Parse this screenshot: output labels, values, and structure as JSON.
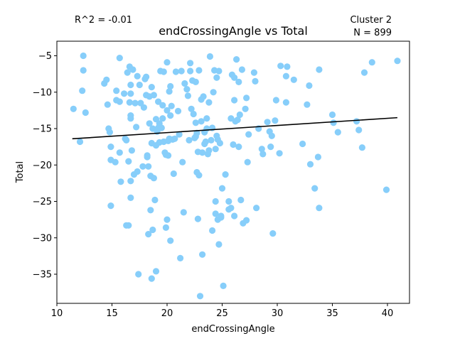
{
  "chart_data": {
    "type": "scatter",
    "title": "endCrossingAngle vs Total",
    "xlabel": "endCrossingAngle",
    "ylabel": "Total",
    "xlim": [
      10,
      42
    ],
    "ylim": [
      -39,
      -3
    ],
    "xticks": [
      10,
      15,
      20,
      25,
      30,
      35,
      40
    ],
    "yticks": [
      -35,
      -30,
      -25,
      -20,
      -15,
      -10,
      -5
    ],
    "grid": false,
    "annotations": {
      "r2": "R^2 = -0.01",
      "cluster": "Cluster 2",
      "n": "N = 899"
    },
    "marker_color": "#87cefa",
    "line_color": "#000000",
    "trendline": {
      "x": [
        11.4,
        40.9
      ],
      "y": [
        -16.4,
        -13.5
      ]
    },
    "points": [
      [
        11.5,
        -12.3
      ],
      [
        12.1,
        -16.8
      ],
      [
        12.3,
        -9.8
      ],
      [
        12.4,
        -5.0
      ],
      [
        12.4,
        -7.0
      ],
      [
        12.6,
        -12.8
      ],
      [
        14.3,
        -8.8
      ],
      [
        14.5,
        -8.3
      ],
      [
        14.6,
        -11.7
      ],
      [
        14.7,
        -15.0
      ],
      [
        14.8,
        -15.5
      ],
      [
        14.9,
        -19.3
      ],
      [
        14.9,
        -17.5
      ],
      [
        14.9,
        -25.6
      ],
      [
        15.3,
        -19.6
      ],
      [
        15.4,
        -9.8
      ],
      [
        15.4,
        -11.1
      ],
      [
        15.7,
        -5.3
      ],
      [
        15.7,
        -11.3
      ],
      [
        15.7,
        -18.3
      ],
      [
        15.8,
        -22.3
      ],
      [
        16.1,
        -10.2
      ],
      [
        16.2,
        -16.4
      ],
      [
        16.3,
        -16.6
      ],
      [
        16.3,
        -28.3
      ],
      [
        16.4,
        -7.3
      ],
      [
        16.5,
        -28.3
      ],
      [
        16.5,
        -19.5
      ],
      [
        16.6,
        -6.5
      ],
      [
        16.6,
        -11.4
      ],
      [
        16.7,
        -10.2
      ],
      [
        16.7,
        -9.0
      ],
      [
        16.7,
        -13.2
      ],
      [
        16.7,
        -13.6
      ],
      [
        16.7,
        -22.2
      ],
      [
        16.7,
        -24.5
      ],
      [
        16.8,
        -18.0
      ],
      [
        16.9,
        -6.9
      ],
      [
        17.0,
        -21.3
      ],
      [
        17.1,
        -11.5
      ],
      [
        17.2,
        -14.8
      ],
      [
        17.3,
        -7.8
      ],
      [
        17.3,
        -20.9
      ],
      [
        17.4,
        -35.0
      ],
      [
        17.5,
        -9.0
      ],
      [
        17.6,
        -11.5
      ],
      [
        17.8,
        -20.2
      ],
      [
        17.9,
        -12.1
      ],
      [
        18.0,
        -8.2
      ],
      [
        18.1,
        -7.9
      ],
      [
        18.1,
        -10.4
      ],
      [
        18.2,
        -18.7
      ],
      [
        18.2,
        -18.9
      ],
      [
        18.3,
        -20.2
      ],
      [
        18.3,
        -29.5
      ],
      [
        18.4,
        -14.3
      ],
      [
        18.4,
        -10.6
      ],
      [
        18.5,
        -26.2
      ],
      [
        18.5,
        -21.5
      ],
      [
        18.6,
        -9.3
      ],
      [
        18.6,
        -17.0
      ],
      [
        18.6,
        -35.6
      ],
      [
        18.7,
        -28.9
      ],
      [
        18.7,
        -15.0
      ],
      [
        18.8,
        -10.4
      ],
      [
        18.8,
        -21.8
      ],
      [
        18.9,
        -24.8
      ],
      [
        19.0,
        -13.7
      ],
      [
        19.0,
        -17.3
      ],
      [
        19.0,
        -34.6
      ],
      [
        19.1,
        -15.4
      ],
      [
        19.2,
        -11.3
      ],
      [
        19.2,
        -14.9
      ],
      [
        19.3,
        -14.3
      ],
      [
        19.3,
        -16.9
      ],
      [
        19.4,
        -7.1
      ],
      [
        19.5,
        -14.9
      ],
      [
        19.6,
        -11.8
      ],
      [
        19.6,
        -13.6
      ],
      [
        19.7,
        -7.2
      ],
      [
        19.7,
        -16.8
      ],
      [
        19.8,
        -18.3
      ],
      [
        19.9,
        -28.6
      ],
      [
        19.9,
        -18.6
      ],
      [
        20.0,
        -5.9
      ],
      [
        20.0,
        -12.5
      ],
      [
        20.0,
        -27.5
      ],
      [
        20.1,
        -18.7
      ],
      [
        20.1,
        -16.7
      ],
      [
        20.2,
        -9.9
      ],
      [
        20.2,
        -16.4
      ],
      [
        20.3,
        -9.2
      ],
      [
        20.3,
        -13.2
      ],
      [
        20.3,
        -30.4
      ],
      [
        20.4,
        -11.9
      ],
      [
        20.5,
        -16.5
      ],
      [
        20.6,
        -21.2
      ],
      [
        20.7,
        -16.4
      ],
      [
        20.8,
        -7.2
      ],
      [
        21.0,
        -12.6
      ],
      [
        21.1,
        -15.8
      ],
      [
        21.2,
        -32.8
      ],
      [
        21.3,
        -7.1
      ],
      [
        21.4,
        -19.6
      ],
      [
        21.5,
        -26.5
      ],
      [
        21.6,
        -8.8
      ],
      [
        21.8,
        -9.6
      ],
      [
        21.9,
        -10.5
      ],
      [
        22.0,
        -16.6
      ],
      [
        22.1,
        -7.1
      ],
      [
        22.1,
        -6.0
      ],
      [
        22.2,
        -12.3
      ],
      [
        22.3,
        -8.4
      ],
      [
        22.4,
        -13.0
      ],
      [
        22.5,
        -16.3
      ],
      [
        22.6,
        -8.6
      ],
      [
        22.6,
        -14.2
      ],
      [
        22.6,
        -16.1
      ],
      [
        22.7,
        -21.0
      ],
      [
        22.7,
        -15.6
      ],
      [
        22.8,
        -18.2
      ],
      [
        22.8,
        -27.4
      ],
      [
        22.9,
        -7.0
      ],
      [
        22.9,
        -21.4
      ],
      [
        23.0,
        -38.0
      ],
      [
        23.1,
        -11.0
      ],
      [
        23.1,
        -14.0
      ],
      [
        23.2,
        -32.3
      ],
      [
        23.2,
        -18.3
      ],
      [
        23.3,
        -10.6
      ],
      [
        23.4,
        -15.5
      ],
      [
        23.4,
        -17.1
      ],
      [
        23.5,
        -16.8
      ],
      [
        23.6,
        -15.0
      ],
      [
        23.6,
        -13.6
      ],
      [
        23.7,
        -18.5
      ],
      [
        23.8,
        -11.4
      ],
      [
        23.8,
        -18.0
      ],
      [
        23.9,
        -5.1
      ],
      [
        24.0,
        -16.6
      ],
      [
        24.1,
        -14.9
      ],
      [
        24.1,
        -29.0
      ],
      [
        24.2,
        -10.0
      ],
      [
        24.3,
        -7.0
      ],
      [
        24.4,
        -17.8
      ],
      [
        24.4,
        -25.0
      ],
      [
        24.4,
        -26.7
      ],
      [
        24.5,
        -16.0
      ],
      [
        24.5,
        -8.0
      ],
      [
        24.6,
        -27.5
      ],
      [
        24.6,
        -16.5
      ],
      [
        24.7,
        -7.1
      ],
      [
        24.7,
        -30.9
      ],
      [
        24.8,
        -17.0
      ],
      [
        24.9,
        -27.2
      ],
      [
        24.9,
        -27.0
      ],
      [
        25.0,
        -23.2
      ],
      [
        25.1,
        -36.6
      ],
      [
        25.3,
        -21.3
      ],
      [
        25.6,
        -25.0
      ],
      [
        25.6,
        -26.1
      ],
      [
        25.8,
        -13.6
      ],
      [
        25.8,
        -25.9
      ],
      [
        25.9,
        -7.6
      ],
      [
        26.0,
        -17.2
      ],
      [
        26.1,
        -8.0
      ],
      [
        26.1,
        -11.1
      ],
      [
        26.1,
        -27.0
      ],
      [
        26.2,
        -14.0
      ],
      [
        26.3,
        -5.5
      ],
      [
        26.4,
        -13.8
      ],
      [
        26.5,
        -17.5
      ],
      [
        26.5,
        -8.6
      ],
      [
        26.6,
        -13.1
      ],
      [
        26.7,
        -24.8
      ],
      [
        26.8,
        -6.9
      ],
      [
        26.9,
        -28.0
      ],
      [
        27.1,
        -12.3
      ],
      [
        27.2,
        -27.6
      ],
      [
        27.2,
        -10.8
      ],
      [
        27.3,
        -19.6
      ],
      [
        27.4,
        -15.8
      ],
      [
        27.9,
        -7.3
      ],
      [
        28.0,
        -8.5
      ],
      [
        28.1,
        -25.9
      ],
      [
        28.3,
        -15.0
      ],
      [
        28.6,
        -17.8
      ],
      [
        28.7,
        -18.5
      ],
      [
        29.1,
        -14.1
      ],
      [
        29.3,
        -15.4
      ],
      [
        29.4,
        -17.5
      ],
      [
        29.5,
        -16.0
      ],
      [
        29.6,
        -29.4
      ],
      [
        29.8,
        -13.9
      ],
      [
        29.9,
        -11.1
      ],
      [
        30.2,
        -18.4
      ],
      [
        30.3,
        -6.4
      ],
      [
        30.8,
        -11.4
      ],
      [
        30.8,
        -7.8
      ],
      [
        30.9,
        -6.5
      ],
      [
        31.5,
        -8.3
      ],
      [
        32.3,
        -17.1
      ],
      [
        32.7,
        -11.7
      ],
      [
        32.9,
        -9.1
      ],
      [
        33.0,
        -19.9
      ],
      [
        33.4,
        -23.2
      ],
      [
        33.7,
        -18.9
      ],
      [
        33.8,
        -25.9
      ],
      [
        33.8,
        -6.9
      ],
      [
        35.0,
        -13.1
      ],
      [
        35.1,
        -14.2
      ],
      [
        35.5,
        -15.5
      ],
      [
        37.2,
        -14.0
      ],
      [
        37.4,
        -15.2
      ],
      [
        37.7,
        -17.6
      ],
      [
        37.9,
        -7.3
      ],
      [
        38.6,
        -5.9
      ],
      [
        39.9,
        -23.4
      ],
      [
        40.9,
        -5.7
      ]
    ]
  }
}
